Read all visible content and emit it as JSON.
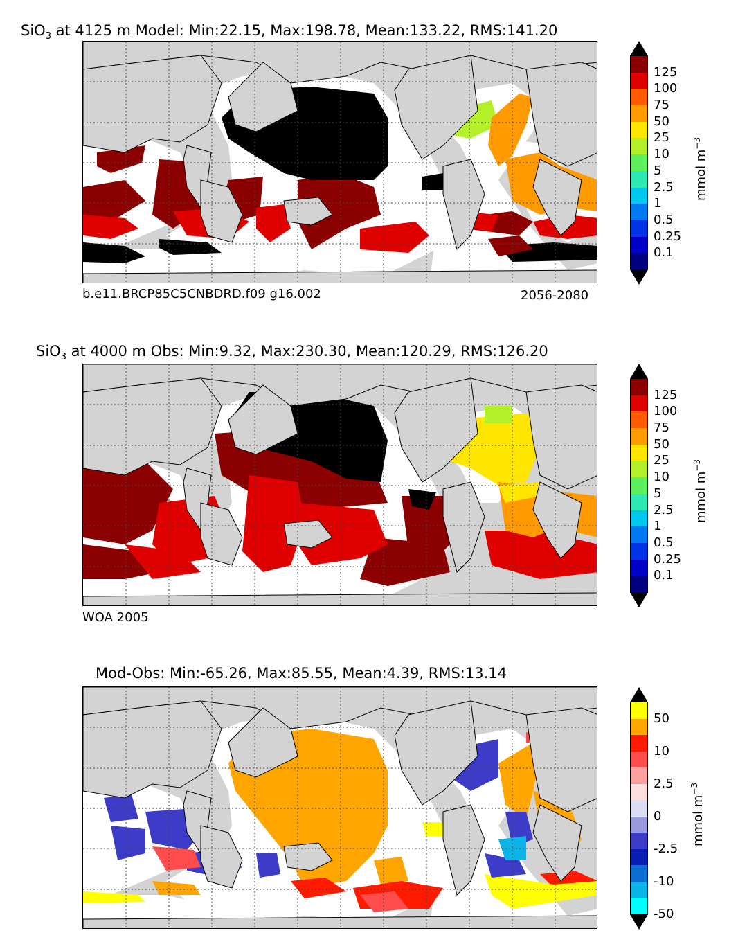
{
  "panels": [
    {
      "title_prefix": "SiO",
      "title_sub": "3",
      "title_rest": " at 4125 m Model: Min:22.15, Max:198.78, Mean:133.22, RMS:141.20",
      "caption_left": "b.e11.BRCP85C5CNBDRD.f09 g16.002",
      "caption_right": "2056-2080"
    },
    {
      "title_prefix": "SiO",
      "title_sub": "3",
      "title_rest": " at 4000 m Obs: Min:9.32, Max:230.30, Mean:120.29, RMS:126.20",
      "caption_left": "WOA 2005",
      "caption_right": ""
    },
    {
      "title_prefix": "",
      "title_sub": "",
      "title_rest": "Mod-Obs: Min:-65.26, Max:85.55, Mean:4.39, RMS:13.14",
      "caption_left": "",
      "caption_right": ""
    }
  ],
  "colorbar_abs": {
    "ticks": [
      "125",
      "100",
      "75",
      "50",
      "25",
      "10",
      "5",
      "2.5",
      "1",
      "0.5",
      "0.25",
      "0.1"
    ],
    "colors": [
      "#8b0000",
      "#e00000",
      "#ff5a00",
      "#ff9a00",
      "#ffe600",
      "#b4f02a",
      "#5cf05c",
      "#2ee8b4",
      "#00c8f0",
      "#0078f0",
      "#0032e6",
      "#0000c8",
      "#000080"
    ],
    "over_color": "#000000",
    "under_color": "#000000",
    "unit_base": "mmol m",
    "unit_sup": "−3"
  },
  "colorbar_diff": {
    "ticks": [
      "50",
      "10",
      "2.5",
      "0",
      "-2.5",
      "-10",
      "-50"
    ],
    "colors": [
      "#ffff00",
      "#ffa500",
      "#ff1a00",
      "#ff4d4d",
      "#ffa0a0",
      "#ffdede",
      "#dcdcf5",
      "#9999dd",
      "#3c3cc8",
      "#0a1eb4",
      "#0a6ed2",
      "#0ab4e6",
      "#00ffff"
    ],
    "unit_base": "mmol m",
    "unit_sup": "−3"
  },
  "colors": {
    "land": "#d3d3d3",
    "nodata": "#ffffff",
    "grid": "#444444"
  }
}
